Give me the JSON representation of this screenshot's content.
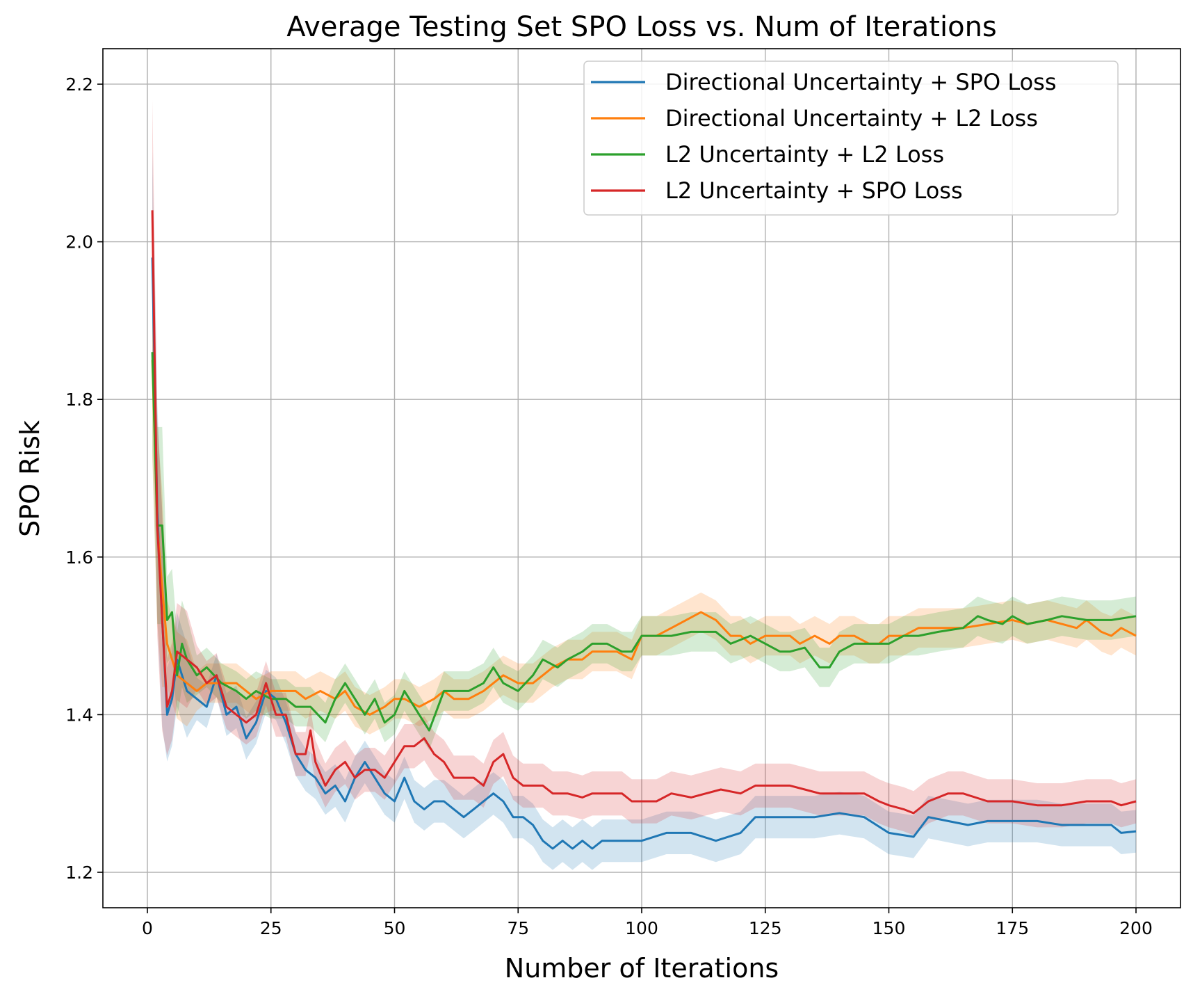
{
  "chart_data": {
    "type": "line",
    "title": "Average Testing Set SPO Loss vs. Num of Iterations",
    "xlabel": "Number of Iterations",
    "ylabel": "SPO Risk",
    "xlim": [
      -9,
      209
    ],
    "ylim": [
      1.155,
      2.245
    ],
    "xticks": [
      0,
      25,
      50,
      75,
      100,
      125,
      150,
      175,
      200
    ],
    "yticks": [
      1.2,
      1.4,
      1.6,
      1.8,
      2.0,
      2.2
    ],
    "ytick_labels": [
      "1.2",
      "1.4",
      "1.6",
      "1.8",
      "2.0",
      "2.2"
    ],
    "grid": true,
    "legend_position": "top-right",
    "series": [
      {
        "name": "Directional Uncertainty + SPO Loss",
        "color": "#1f77b4",
        "band": 0.027,
        "points": [
          [
            1,
            1.98
          ],
          [
            2,
            1.66
          ],
          [
            3,
            1.52
          ],
          [
            4,
            1.4
          ],
          [
            5,
            1.42
          ],
          [
            6,
            1.47
          ],
          [
            8,
            1.43
          ],
          [
            10,
            1.42
          ],
          [
            12,
            1.41
          ],
          [
            14,
            1.45
          ],
          [
            16,
            1.4
          ],
          [
            18,
            1.41
          ],
          [
            20,
            1.37
          ],
          [
            22,
            1.39
          ],
          [
            24,
            1.43
          ],
          [
            26,
            1.42
          ],
          [
            28,
            1.39
          ],
          [
            30,
            1.35
          ],
          [
            32,
            1.33
          ],
          [
            34,
            1.32
          ],
          [
            36,
            1.3
          ],
          [
            38,
            1.31
          ],
          [
            40,
            1.29
          ],
          [
            42,
            1.32
          ],
          [
            44,
            1.34
          ],
          [
            46,
            1.32
          ],
          [
            48,
            1.3
          ],
          [
            50,
            1.29
          ],
          [
            52,
            1.32
          ],
          [
            54,
            1.29
          ],
          [
            56,
            1.28
          ],
          [
            58,
            1.29
          ],
          [
            60,
            1.29
          ],
          [
            62,
            1.28
          ],
          [
            64,
            1.27
          ],
          [
            66,
            1.28
          ],
          [
            68,
            1.29
          ],
          [
            70,
            1.3
          ],
          [
            72,
            1.29
          ],
          [
            74,
            1.27
          ],
          [
            76,
            1.27
          ],
          [
            78,
            1.26
          ],
          [
            80,
            1.24
          ],
          [
            82,
            1.23
          ],
          [
            84,
            1.24
          ],
          [
            86,
            1.23
          ],
          [
            88,
            1.24
          ],
          [
            90,
            1.23
          ],
          [
            92,
            1.24
          ],
          [
            95,
            1.24
          ],
          [
            100,
            1.24
          ],
          [
            105,
            1.25
          ],
          [
            110,
            1.25
          ],
          [
            115,
            1.24
          ],
          [
            120,
            1.25
          ],
          [
            123,
            1.27
          ],
          [
            125,
            1.27
          ],
          [
            130,
            1.27
          ],
          [
            135,
            1.27
          ],
          [
            140,
            1.275
          ],
          [
            145,
            1.27
          ],
          [
            150,
            1.25
          ],
          [
            155,
            1.245
          ],
          [
            158,
            1.27
          ],
          [
            162,
            1.265
          ],
          [
            166,
            1.26
          ],
          [
            170,
            1.265
          ],
          [
            175,
            1.265
          ],
          [
            180,
            1.265
          ],
          [
            185,
            1.26
          ],
          [
            190,
            1.26
          ],
          [
            195,
            1.26
          ],
          [
            197,
            1.25
          ],
          [
            200,
            1.252
          ]
        ]
      },
      {
        "name": "Directional Uncertainty + L2 Loss",
        "color": "#ff7f0e",
        "band": 0.025,
        "points": [
          [
            1,
            1.85
          ],
          [
            2,
            1.64
          ],
          [
            3,
            1.56
          ],
          [
            4,
            1.49
          ],
          [
            5,
            1.47
          ],
          [
            6,
            1.45
          ],
          [
            8,
            1.44
          ],
          [
            10,
            1.43
          ],
          [
            12,
            1.44
          ],
          [
            15,
            1.44
          ],
          [
            18,
            1.44
          ],
          [
            20,
            1.43
          ],
          [
            22,
            1.42
          ],
          [
            25,
            1.43
          ],
          [
            28,
            1.43
          ],
          [
            30,
            1.43
          ],
          [
            32,
            1.42
          ],
          [
            35,
            1.43
          ],
          [
            38,
            1.42
          ],
          [
            40,
            1.43
          ],
          [
            42,
            1.41
          ],
          [
            45,
            1.4
          ],
          [
            48,
            1.41
          ],
          [
            50,
            1.42
          ],
          [
            52,
            1.42
          ],
          [
            55,
            1.41
          ],
          [
            58,
            1.42
          ],
          [
            60,
            1.43
          ],
          [
            62,
            1.42
          ],
          [
            65,
            1.42
          ],
          [
            68,
            1.43
          ],
          [
            70,
            1.44
          ],
          [
            72,
            1.45
          ],
          [
            75,
            1.44
          ],
          [
            78,
            1.44
          ],
          [
            80,
            1.45
          ],
          [
            82,
            1.46
          ],
          [
            85,
            1.47
          ],
          [
            88,
            1.47
          ],
          [
            90,
            1.48
          ],
          [
            93,
            1.48
          ],
          [
            95,
            1.48
          ],
          [
            98,
            1.47
          ],
          [
            100,
            1.5
          ],
          [
            103,
            1.5
          ],
          [
            106,
            1.51
          ],
          [
            109,
            1.52
          ],
          [
            112,
            1.53
          ],
          [
            115,
            1.52
          ],
          [
            118,
            1.5
          ],
          [
            120,
            1.5
          ],
          [
            122,
            1.49
          ],
          [
            125,
            1.5
          ],
          [
            128,
            1.5
          ],
          [
            130,
            1.5
          ],
          [
            132,
            1.49
          ],
          [
            135,
            1.5
          ],
          [
            138,
            1.49
          ],
          [
            140,
            1.5
          ],
          [
            143,
            1.5
          ],
          [
            146,
            1.49
          ],
          [
            148,
            1.49
          ],
          [
            150,
            1.5
          ],
          [
            153,
            1.5
          ],
          [
            156,
            1.51
          ],
          [
            160,
            1.51
          ],
          [
            165,
            1.51
          ],
          [
            170,
            1.515
          ],
          [
            175,
            1.52
          ],
          [
            178,
            1.515
          ],
          [
            182,
            1.52
          ],
          [
            185,
            1.515
          ],
          [
            188,
            1.51
          ],
          [
            190,
            1.52
          ],
          [
            193,
            1.505
          ],
          [
            195,
            1.5
          ],
          [
            197,
            1.51
          ],
          [
            200,
            1.5
          ]
        ]
      },
      {
        "name": "L2 Uncertainty + L2 Loss",
        "color": "#2ca02c",
        "band": 0.025,
        "points": [
          [
            1,
            1.86
          ],
          [
            2,
            1.64
          ],
          [
            3,
            1.64
          ],
          [
            4,
            1.52
          ],
          [
            5,
            1.53
          ],
          [
            6,
            1.45
          ],
          [
            7,
            1.49
          ],
          [
            8,
            1.47
          ],
          [
            10,
            1.45
          ],
          [
            12,
            1.46
          ],
          [
            15,
            1.44
          ],
          [
            18,
            1.43
          ],
          [
            20,
            1.42
          ],
          [
            22,
            1.43
          ],
          [
            25,
            1.42
          ],
          [
            28,
            1.42
          ],
          [
            30,
            1.41
          ],
          [
            33,
            1.41
          ],
          [
            36,
            1.39
          ],
          [
            38,
            1.42
          ],
          [
            40,
            1.44
          ],
          [
            42,
            1.42
          ],
          [
            44,
            1.4
          ],
          [
            46,
            1.42
          ],
          [
            48,
            1.39
          ],
          [
            50,
            1.4
          ],
          [
            52,
            1.43
          ],
          [
            55,
            1.4
          ],
          [
            57,
            1.38
          ],
          [
            60,
            1.43
          ],
          [
            63,
            1.43
          ],
          [
            65,
            1.43
          ],
          [
            68,
            1.44
          ],
          [
            70,
            1.46
          ],
          [
            72,
            1.44
          ],
          [
            75,
            1.43
          ],
          [
            78,
            1.45
          ],
          [
            80,
            1.47
          ],
          [
            83,
            1.46
          ],
          [
            85,
            1.47
          ],
          [
            88,
            1.48
          ],
          [
            90,
            1.49
          ],
          [
            93,
            1.49
          ],
          [
            96,
            1.48
          ],
          [
            98,
            1.48
          ],
          [
            100,
            1.5
          ],
          [
            103,
            1.5
          ],
          [
            106,
            1.5
          ],
          [
            110,
            1.505
          ],
          [
            115,
            1.505
          ],
          [
            118,
            1.49
          ],
          [
            122,
            1.5
          ],
          [
            125,
            1.49
          ],
          [
            128,
            1.48
          ],
          [
            130,
            1.48
          ],
          [
            133,
            1.485
          ],
          [
            136,
            1.46
          ],
          [
            138,
            1.46
          ],
          [
            140,
            1.48
          ],
          [
            143,
            1.49
          ],
          [
            146,
            1.49
          ],
          [
            150,
            1.49
          ],
          [
            153,
            1.5
          ],
          [
            156,
            1.5
          ],
          [
            160,
            1.505
          ],
          [
            165,
            1.51
          ],
          [
            168,
            1.525
          ],
          [
            170,
            1.52
          ],
          [
            173,
            1.515
          ],
          [
            175,
            1.525
          ],
          [
            178,
            1.515
          ],
          [
            182,
            1.52
          ],
          [
            185,
            1.525
          ],
          [
            190,
            1.52
          ],
          [
            195,
            1.52
          ],
          [
            200,
            1.525
          ]
        ]
      },
      {
        "name": "L2 Uncertainty + SPO Loss",
        "color": "#d62728",
        "band": 0.028,
        "points": [
          [
            1,
            2.04
          ],
          [
            2,
            1.64
          ],
          [
            3,
            1.52
          ],
          [
            4,
            1.41
          ],
          [
            5,
            1.43
          ],
          [
            6,
            1.48
          ],
          [
            8,
            1.47
          ],
          [
            10,
            1.46
          ],
          [
            12,
            1.44
          ],
          [
            14,
            1.45
          ],
          [
            16,
            1.41
          ],
          [
            18,
            1.4
          ],
          [
            20,
            1.39
          ],
          [
            22,
            1.4
          ],
          [
            24,
            1.44
          ],
          [
            26,
            1.4
          ],
          [
            28,
            1.4
          ],
          [
            30,
            1.35
          ],
          [
            32,
            1.35
          ],
          [
            33,
            1.38
          ],
          [
            34,
            1.34
          ],
          [
            36,
            1.31
          ],
          [
            38,
            1.33
          ],
          [
            40,
            1.34
          ],
          [
            42,
            1.32
          ],
          [
            44,
            1.33
          ],
          [
            46,
            1.33
          ],
          [
            48,
            1.32
          ],
          [
            50,
            1.34
          ],
          [
            52,
            1.36
          ],
          [
            54,
            1.36
          ],
          [
            56,
            1.37
          ],
          [
            58,
            1.35
          ],
          [
            60,
            1.34
          ],
          [
            62,
            1.32
          ],
          [
            64,
            1.32
          ],
          [
            66,
            1.32
          ],
          [
            68,
            1.31
          ],
          [
            70,
            1.34
          ],
          [
            72,
            1.35
          ],
          [
            74,
            1.32
          ],
          [
            76,
            1.31
          ],
          [
            78,
            1.31
          ],
          [
            80,
            1.31
          ],
          [
            82,
            1.3
          ],
          [
            85,
            1.3
          ],
          [
            88,
            1.295
          ],
          [
            90,
            1.3
          ],
          [
            93,
            1.3
          ],
          [
            96,
            1.3
          ],
          [
            98,
            1.29
          ],
          [
            100,
            1.29
          ],
          [
            103,
            1.29
          ],
          [
            106,
            1.3
          ],
          [
            110,
            1.295
          ],
          [
            113,
            1.3
          ],
          [
            116,
            1.305
          ],
          [
            120,
            1.3
          ],
          [
            123,
            1.31
          ],
          [
            126,
            1.31
          ],
          [
            130,
            1.31
          ],
          [
            133,
            1.305
          ],
          [
            136,
            1.3
          ],
          [
            140,
            1.3
          ],
          [
            145,
            1.3
          ],
          [
            148,
            1.29
          ],
          [
            150,
            1.285
          ],
          [
            153,
            1.28
          ],
          [
            155,
            1.275
          ],
          [
            158,
            1.29
          ],
          [
            162,
            1.3
          ],
          [
            165,
            1.3
          ],
          [
            170,
            1.29
          ],
          [
            175,
            1.29
          ],
          [
            180,
            1.285
          ],
          [
            185,
            1.285
          ],
          [
            190,
            1.29
          ],
          [
            195,
            1.29
          ],
          [
            197,
            1.285
          ],
          [
            200,
            1.29
          ]
        ]
      }
    ]
  }
}
